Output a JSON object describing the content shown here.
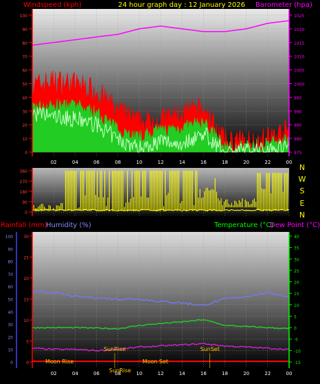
{
  "header": {
    "left_label": "Windspeed (kph)",
    "title": "24 hour graph day : 12 January 2026",
    "right_label": "Barometer (hpa)"
  },
  "colors": {
    "wind_max": "#ff0000",
    "wind_avg": "#22cc22",
    "wind_min": "#ccffcc",
    "barometer": "#ff00ff",
    "direction": "#ffff00",
    "rain": "#ff0000",
    "humidity": "#8888ff",
    "temperature": "#00ff00",
    "dewpoint": "#cc00cc",
    "temp_line": "#22cc22",
    "dew_line": "#cc22cc",
    "hum_line": "#7777ee",
    "events": "#ffcc00"
  },
  "chart_data": [
    {
      "type": "line",
      "name": "wind_barometer",
      "title": "24 hour graph day : 12 January 2026",
      "ylabel_left": "Windspeed (kph)",
      "ylabel_right": "Barometer (hpa)",
      "x_ticks": [
        "02",
        "04",
        "06",
        "08",
        "10",
        "12",
        "14",
        "16",
        "18",
        "20",
        "22",
        "00"
      ],
      "left_ticks": [
        "0",
        "10",
        "20",
        "30",
        "40",
        "50",
        "60",
        "70",
        "80",
        "90",
        "100"
      ],
      "right_ticks": [
        "975",
        "980",
        "985",
        "990",
        "995",
        "1000",
        "1005",
        "1010",
        "1015",
        "1020",
        "1025"
      ],
      "ylim_left": [
        0,
        100
      ],
      "ylim_right": [
        975,
        1025
      ],
      "x": [
        0,
        2,
        4,
        6,
        8,
        10,
        12,
        14,
        16,
        18,
        20,
        22,
        24
      ],
      "series": [
        {
          "key": "wind_max",
          "values": [
            48,
            52,
            50,
            45,
            30,
            22,
            24,
            28,
            32,
            8,
            8,
            10,
            16
          ]
        },
        {
          "key": "wind_avg",
          "values": [
            33,
            34,
            34,
            29,
            17,
            11,
            16,
            18,
            22,
            4,
            4,
            6,
            10
          ]
        },
        {
          "key": "wind_min",
          "values": [
            28,
            26,
            24,
            20,
            9,
            3,
            8,
            6,
            14,
            0,
            1,
            2,
            5
          ]
        },
        {
          "key": "barometer",
          "axis": "right",
          "values": [
            1014,
            1015,
            1016,
            1017,
            1018,
            1020,
            1021,
            1020,
            1019,
            1019,
            1020,
            1022,
            1023
          ]
        }
      ]
    },
    {
      "type": "scatter",
      "name": "wind_direction",
      "left_ticks": [
        "0",
        "90",
        "180",
        "270",
        "360"
      ],
      "compass": [
        "N",
        "W",
        "S",
        "E",
        "N"
      ],
      "ylim": [
        0,
        360
      ]
    },
    {
      "type": "line",
      "name": "temp_hum_rain",
      "labels": {
        "rainfall": "Rainfall (mm)",
        "humidity": "Humidity (%)",
        "temperature": "Temperature (°C)",
        "dewpoint": "Dew Point (°C)"
      },
      "x_ticks": [
        "02",
        "04",
        "06",
        "08",
        "10",
        "12",
        "14",
        "16",
        "18",
        "20",
        "22",
        "00"
      ],
      "humidity_ticks": [
        "0",
        "10",
        "20",
        "30",
        "40",
        "50",
        "60",
        "70",
        "80",
        "90",
        "100"
      ],
      "rain_ticks": [
        "0",
        "5",
        "10",
        "15",
        "20",
        "25",
        "30"
      ],
      "temp_ticks": [
        "-15",
        "-10",
        "-5",
        "0",
        "5",
        "10",
        "15",
        "20",
        "25",
        "30",
        "35",
        "40"
      ],
      "ylim_temp": [
        -15,
        40
      ],
      "x": [
        0,
        2,
        4,
        6,
        8,
        10,
        12,
        14,
        16,
        18,
        20,
        22,
        24
      ],
      "series": [
        {
          "key": "temperature",
          "values": [
            0,
            0,
            0,
            -0.2,
            -0.5,
            1,
            1.8,
            2.5,
            3.5,
            1,
            0.5,
            0,
            -0.5
          ]
        },
        {
          "key": "dewpoint",
          "values": [
            -9,
            -9.5,
            -9.5,
            -10,
            -9.5,
            -8.5,
            -8,
            -7.5,
            -7,
            -8,
            -8.5,
            -9,
            -9.5
          ]
        },
        {
          "key": "humidity",
          "values": [
            56,
            55,
            52,
            51,
            50,
            50,
            48,
            47,
            45,
            50,
            52,
            55,
            52
          ]
        }
      ],
      "events": [
        {
          "label": "SunRise",
          "x": 7.7
        },
        {
          "label": "SunSet",
          "x": 16.6
        },
        {
          "label": "Moon Rise",
          "x": -0.5
        },
        {
          "label": "Moon Set",
          "x": 11.5
        },
        {
          "label": "SunRise",
          "x": 8.2
        }
      ]
    }
  ]
}
